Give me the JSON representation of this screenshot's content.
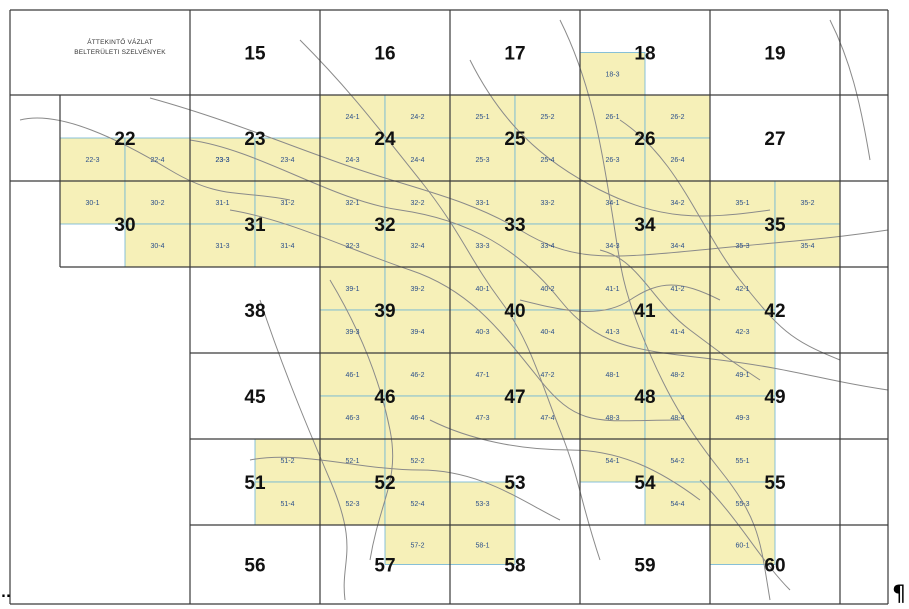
{
  "map": {
    "title_lines": [
      "ÁTTEKINTŐ VÁZLAT",
      "BELTERÜLETI SZELVÉNYEK"
    ],
    "sheets": [
      "15",
      "16",
      "17",
      "18",
      "19",
      "22",
      "23",
      "24",
      "25",
      "26",
      "27",
      "30",
      "31",
      "32",
      "33",
      "34",
      "35",
      "38",
      "39",
      "40",
      "41",
      "42",
      "45",
      "46",
      "47",
      "48",
      "49",
      "51",
      "52",
      "53",
      "54",
      "55",
      "56",
      "57",
      "58",
      "59",
      "60"
    ],
    "subsheets": [
      "18-3",
      "23-3",
      "24-1",
      "24-2",
      "25-1",
      "25-2",
      "26-1",
      "26-2",
      "22-3",
      "22-4",
      "23-3",
      "23-4",
      "24-3",
      "24-4",
      "25-3",
      "25-4",
      "26-3",
      "26-4",
      "30-1",
      "30-2",
      "31-1",
      "31-2",
      "32-1",
      "32-2",
      "33-1",
      "33-2",
      "34-1",
      "34-2",
      "35-1",
      "35-2",
      "30-4",
      "31-3",
      "31-4",
      "32-3",
      "32-4",
      "33-3",
      "33-4",
      "34-3",
      "34-4",
      "35-3",
      "35-4",
      "39-1",
      "39-2",
      "40-1",
      "40-2",
      "41-1",
      "41-2",
      "42-1",
      "39-3",
      "39-4",
      "40-3",
      "40-4",
      "41-3",
      "41-4",
      "42-3",
      "46-1",
      "46-2",
      "47-1",
      "47-2",
      "48-1",
      "48-2",
      "49-1",
      "46-3",
      "46-4",
      "47-3",
      "47-4",
      "48-3",
      "48-4",
      "49-3",
      "51-2",
      "52-1",
      "52-2",
      "54-1",
      "54-2",
      "55-1",
      "51-4",
      "52-3",
      "52-4",
      "53-3",
      "54-4",
      "55-3",
      "57-2",
      "58-1",
      "60-1"
    ],
    "colors": {
      "highlight": "#f6f0b8",
      "grid": "#3a3a3a",
      "subgrid": "#6bb3d6",
      "streets": "#8a8a8a",
      "subtext": "#2b4f8a"
    }
  },
  "margin_marks": {
    "left": "..",
    "right": "¶"
  }
}
